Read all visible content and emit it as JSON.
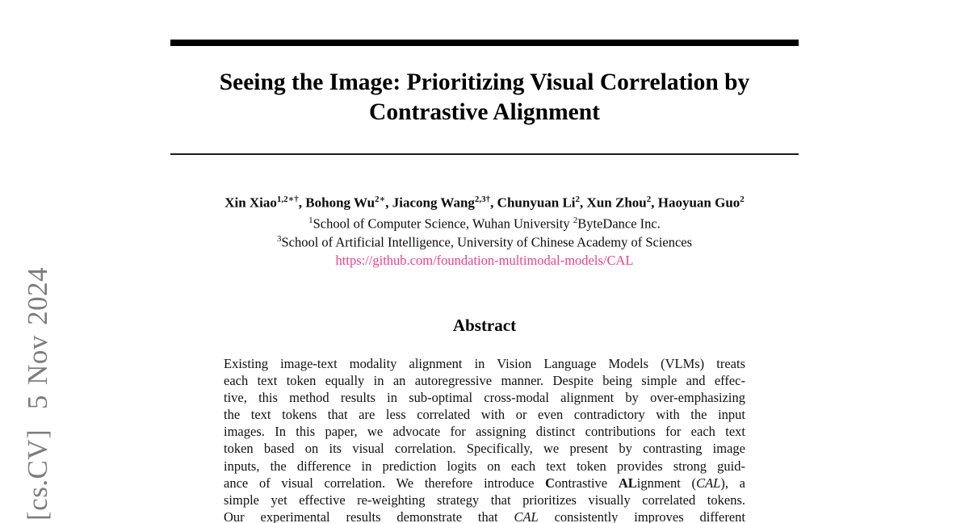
{
  "colors": {
    "text_black": "#0b0b0b",
    "link_pink": "#ee4189",
    "watermark_gray": "#7d7d7d",
    "rule_black": "#000000"
  },
  "watermark": {
    "text": "[cs.CV]  5 Nov 2024"
  },
  "title": {
    "line1": "Seeing the Image: Prioritizing Visual Correlation by",
    "line2": "Contrastive Alignment"
  },
  "authors": {
    "separator": ", ",
    "list": [
      {
        "name": "Xin Xiao",
        "sup": "1,2∗†"
      },
      {
        "name": "Bohong Wu",
        "sup": "2∗"
      },
      {
        "name": "Jiacong Wang",
        "sup": "2,3†"
      },
      {
        "name": "Chunyuan Li",
        "sup": "2"
      },
      {
        "name": "Xun Zhou",
        "sup": "2"
      },
      {
        "name": "Haoyuan Guo",
        "sup": "2"
      }
    ],
    "affiliation1": {
      "sup1": "1",
      "text1": "School of Computer Science, Wuhan University ",
      "sup2": "2",
      "text2": "ByteDance Inc."
    },
    "affiliation2": {
      "sup": "3",
      "text": "School of Artificial Intelligence, University of Chinese Academy of Sciences"
    },
    "link": "https://github.com/foundation-multimodal-models/CAL"
  },
  "abstract": {
    "heading": "Abstract",
    "lines": [
      "Existing image-text modality alignment in Vision Language Models (VLMs) treats",
      "each text token equally in an autoregressive manner. Despite being simple and effec-",
      "tive, this method results in sub-optimal cross-modal alignment by over-emphasizing",
      "the text tokens that are less correlated with or even contradictory with the input",
      "images. In this paper, we advocate for assigning distinct contributions for each text",
      "token based on its visual correlation. Specifically, we present by contrasting image",
      "inputs, the difference in prediction logits on each text token provides strong guid-",
      "simple yet effective re-weighting strategy that prioritizes visually correlated tokens."
    ],
    "l8": {
      "pre": "ance of visual correlation. We therefore introduce ",
      "b1": "C",
      "m1": "ontrastive ",
      "b2": "AL",
      "m2": "ignment (",
      "it": "CAL",
      "post": "), a"
    },
    "l10": {
      "pre": "Our experimental results demonstrate that ",
      "it": "CAL",
      "post": " consistently improves different"
    }
  }
}
